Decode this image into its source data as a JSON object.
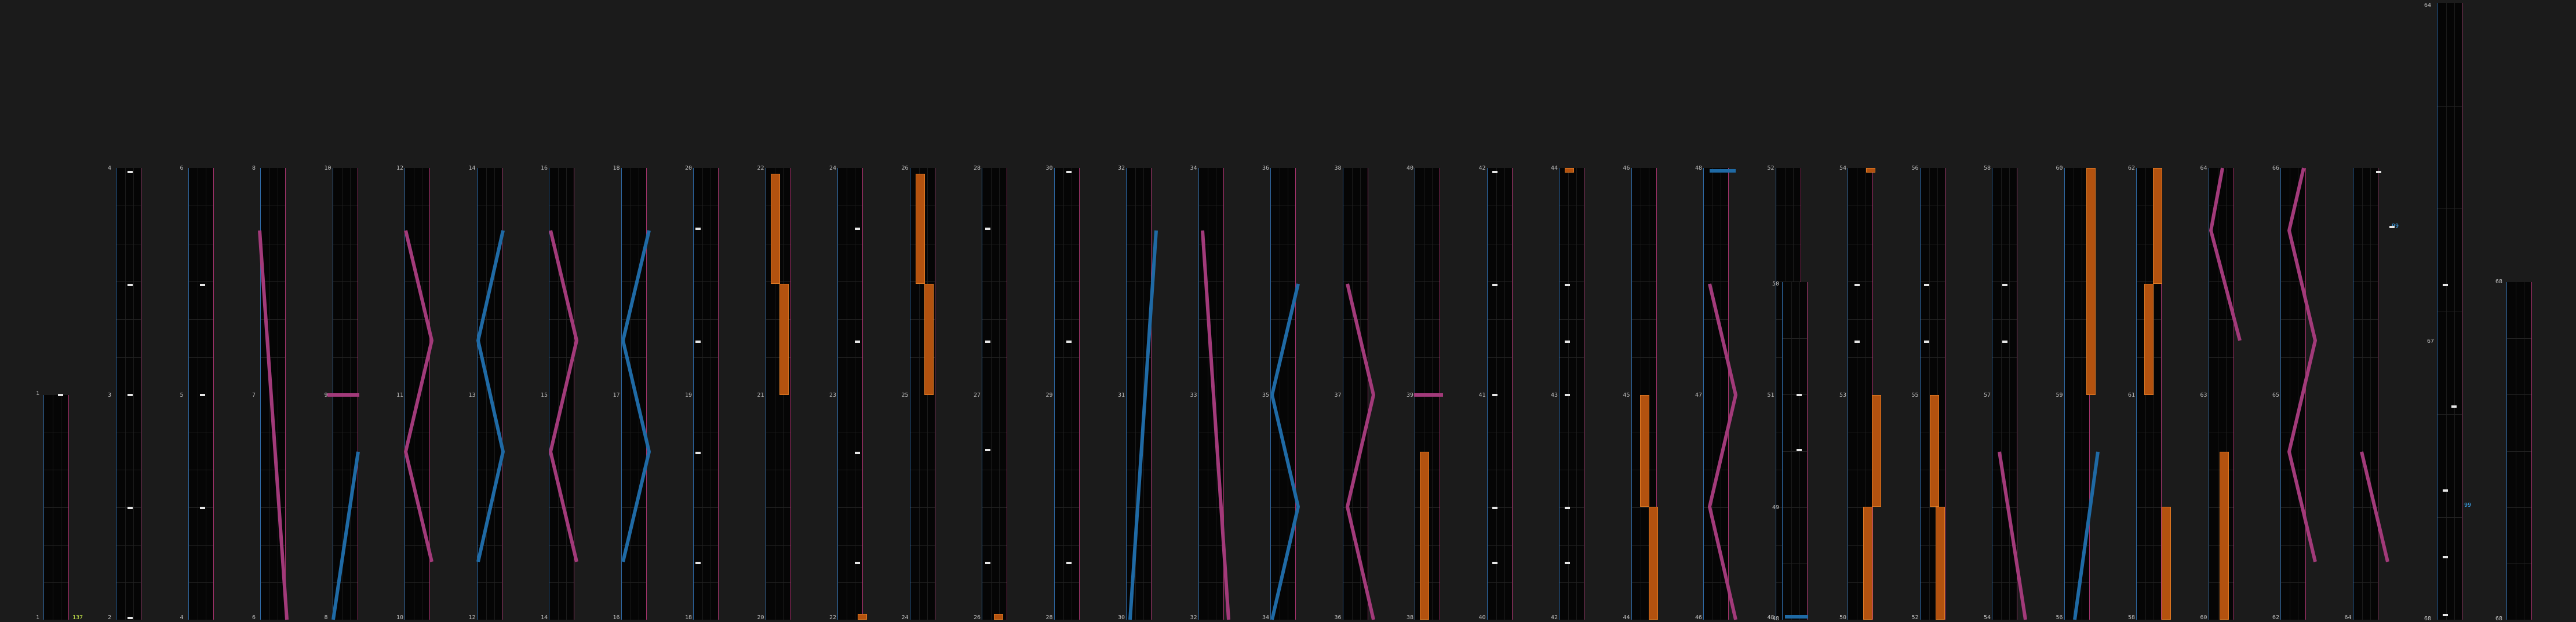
{
  "colors": {
    "background": "#1b1b1b",
    "column_fill": "#050505",
    "left_edge_blue": "#2f6aa6",
    "right_edge_magenta": "#a6346d",
    "trace_blue": "#1f6aa5",
    "trace_magenta": "#a23a7a",
    "orange_bar": "#b3520f",
    "tick_white": "#e6e6e6",
    "label_green": "#c7e84a",
    "label_blue": "#3da9f5"
  },
  "readouts": {
    "bottom_left_value": "137",
    "right_marker_a": "99",
    "right_marker_b": "99"
  },
  "top_labels": [
    "4",
    "6",
    "8",
    "10",
    "12",
    "14",
    "16",
    "18",
    "20",
    "22",
    "24",
    "26",
    "28",
    "30",
    "32",
    "34",
    "36",
    "38",
    "40",
    "42",
    "44",
    "46",
    "48",
    "52",
    "54",
    "56",
    "58",
    "60",
    "62",
    "64",
    "66"
  ],
  "mid_labels": [
    "1",
    "3",
    "5",
    "7",
    "9",
    "11",
    "13",
    "15",
    "17",
    "19",
    "21",
    "23",
    "25",
    "27",
    "29",
    "31",
    "33",
    "35",
    "37",
    "39",
    "41",
    "43",
    "45",
    "47",
    "51",
    "53",
    "55",
    "57",
    "59",
    "61",
    "63",
    "65"
  ],
  "bottom_labels": [
    "1",
    "2",
    "4",
    "6",
    "8",
    "10",
    "12",
    "14",
    "16",
    "18",
    "20",
    "22",
    "24",
    "26",
    "28",
    "30",
    "32",
    "34",
    "36",
    "38",
    "40",
    "42",
    "44",
    "46",
    "48",
    "50",
    "52",
    "54",
    "56",
    "58",
    "60",
    "62",
    "64",
    "66"
  ],
  "side_labels": [
    "50",
    "49",
    "48",
    "67",
    "68",
    "68",
    "68"
  ]
}
